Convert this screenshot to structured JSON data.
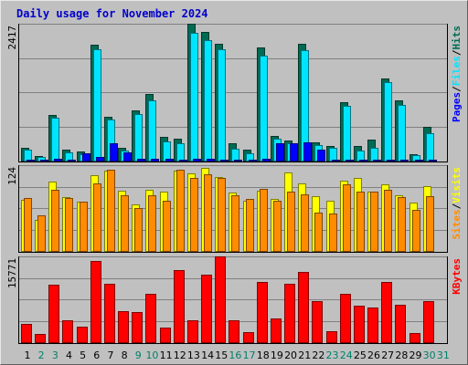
{
  "chart_data": {
    "type": "bar",
    "title": "Daily usage for November 2024",
    "days": [
      "1",
      "2",
      "3",
      "4",
      "5",
      "6",
      "7",
      "8",
      "9",
      "10",
      "11",
      "12",
      "13",
      "14",
      "15",
      "16",
      "17",
      "18",
      "19",
      "20",
      "21",
      "22",
      "23",
      "24",
      "25",
      "26",
      "27",
      "28",
      "29",
      "30",
      "31"
    ],
    "weekend_days": [
      "2",
      "3",
      "9",
      "10",
      "16",
      "17",
      "23",
      "24",
      "30",
      "31"
    ],
    "panels": [
      {
        "id": "hits-files-pages",
        "max_label": "2417",
        "ymax": 2417,
        "legend": [
          "Pages",
          "/",
          "Files",
          "/",
          "Hits"
        ],
        "series": [
          {
            "name": "Hits",
            "color": "#006B54",
            "values": [
              220,
              80,
              800,
              200,
              160,
              2050,
              780,
              220,
              880,
              1170,
              420,
              380,
              2410,
              2280,
              2060,
              310,
              190,
              1990,
              430,
              350,
              2060,
              320,
              260,
              1030,
              250,
              370,
              1450,
              1060,
              120,
              590,
              0
            ]
          },
          {
            "name": "Files",
            "color": "#00E5FF",
            "values": [
              190,
              60,
              760,
              140,
              120,
              1970,
              720,
              180,
              820,
              1060,
              340,
              300,
              2250,
              2120,
              1970,
              210,
              130,
              1860,
              390,
              310,
              1950,
              270,
              220,
              960,
              180,
              220,
              1390,
              990,
              90,
              480,
              0
            ]
          },
          {
            "name": "Pages",
            "color": "#0000FF",
            "values": [
              20,
              8,
              25,
              20,
              130,
              60,
              300,
              150,
              30,
              30,
              30,
              20,
              30,
              30,
              20,
              20,
              10,
              30,
              300,
              300,
              330,
              200,
              10,
              20,
              10,
              10,
              10,
              10,
              5,
              10,
              0
            ]
          }
        ]
      },
      {
        "id": "visits-sites",
        "max_label": "124",
        "ymax": 124,
        "legend": [
          "Sites",
          "/",
          "Visits"
        ],
        "series": [
          {
            "name": "Visits",
            "color": "#FFFF00",
            "values": [
              74,
              45,
              100,
              78,
              71,
              110,
              116,
              87,
              67,
              89,
              86,
              116,
              112,
              120,
              107,
              84,
              72,
              87,
              75,
              113,
              98,
              79,
              72,
              101,
              105,
              86,
              96,
              80,
              70,
              93,
              0
            ]
          },
          {
            "name": "Sites",
            "color": "#FF8C00",
            "values": [
              77,
              52,
              88,
              76,
              71,
              98,
              118,
              80,
              62,
              81,
              73,
              118,
              105,
              111,
              105,
              81,
              75,
              90,
              73,
              86,
              82,
              55,
              54,
              96,
              86,
              86,
              88,
              78,
              60,
              79,
              0
            ]
          }
        ]
      },
      {
        "id": "kbytes",
        "max_label": "15771",
        "ymax": 15771,
        "legend": [
          "KBytes"
        ],
        "series": [
          {
            "name": "KBytes",
            "color": "#FF0000",
            "values": [
              3400,
              1500,
              10500,
              4100,
              2900,
              14850,
              10700,
              5700,
              5500,
              8900,
              2700,
              13200,
              4000,
              12400,
              15771,
              4000,
              1900,
              11000,
              4300,
              10700,
              12900,
              7500,
              2000,
              8900,
              6700,
              6300,
              11000,
              6800,
              1700,
              7500,
              0
            ]
          }
        ]
      }
    ]
  }
}
